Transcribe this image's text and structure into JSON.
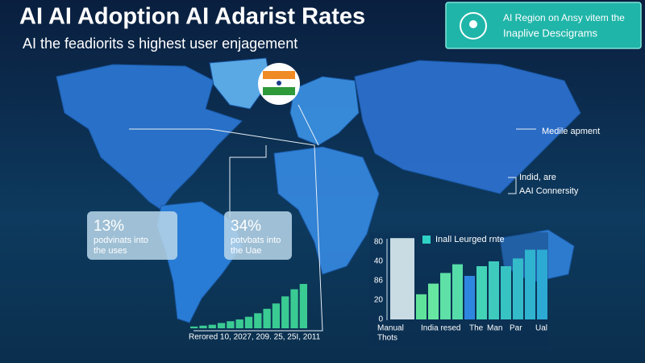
{
  "header": {
    "title": "AI AI Adoption AI Adarist Rates",
    "subtitle": "AI the feadiorits s highest user enjagement"
  },
  "info_box": {
    "line1": "AI Region on Ansy vitem the",
    "line2": "Inaplive Descigrams"
  },
  "callouts": [
    {
      "label": "Medile apment"
    },
    {
      "label": "Indid, are"
    },
    {
      "label": "AAI Connersity"
    }
  ],
  "stat_boxes": [
    {
      "value": "13%",
      "line1": "podvinats into",
      "line2": "the uses"
    },
    {
      "value": "34%",
      "line1": "potvbats into",
      "line2": "the Uae"
    }
  ],
  "mini_chart": {
    "label": "Rerored 10, 2027, 209. 25, 25I, 2011",
    "values": [
      2,
      3,
      4,
      6,
      8,
      10,
      13,
      17,
      22,
      28,
      36,
      44,
      50
    ]
  },
  "bar_chart": {
    "title": "Inall Leurged rnte",
    "y_labels": [
      80,
      40,
      86,
      20,
      0
    ],
    "ylim": [
      0,
      80
    ],
    "values": [
      84,
      26,
      37,
      48,
      57,
      45,
      55,
      60,
      55,
      63,
      72,
      72
    ],
    "colors": [
      "#c9dbe3",
      "#5fe39a",
      "#66e6a0",
      "#5ee0a6",
      "#56dca8",
      "#2f86e0",
      "#43d3b6",
      "#3ecbbd",
      "#38c3c3",
      "#33bbc9",
      "#2fb3cf",
      "#2caad3"
    ],
    "x_labels": [
      {
        "text": "Manual",
        "text2": "Thots"
      },
      {
        "text": "India resed"
      },
      {
        "text": "The"
      },
      {
        "text": "Man"
      },
      {
        "text": "Par"
      },
      {
        "text": "Ual"
      }
    ]
  }
}
